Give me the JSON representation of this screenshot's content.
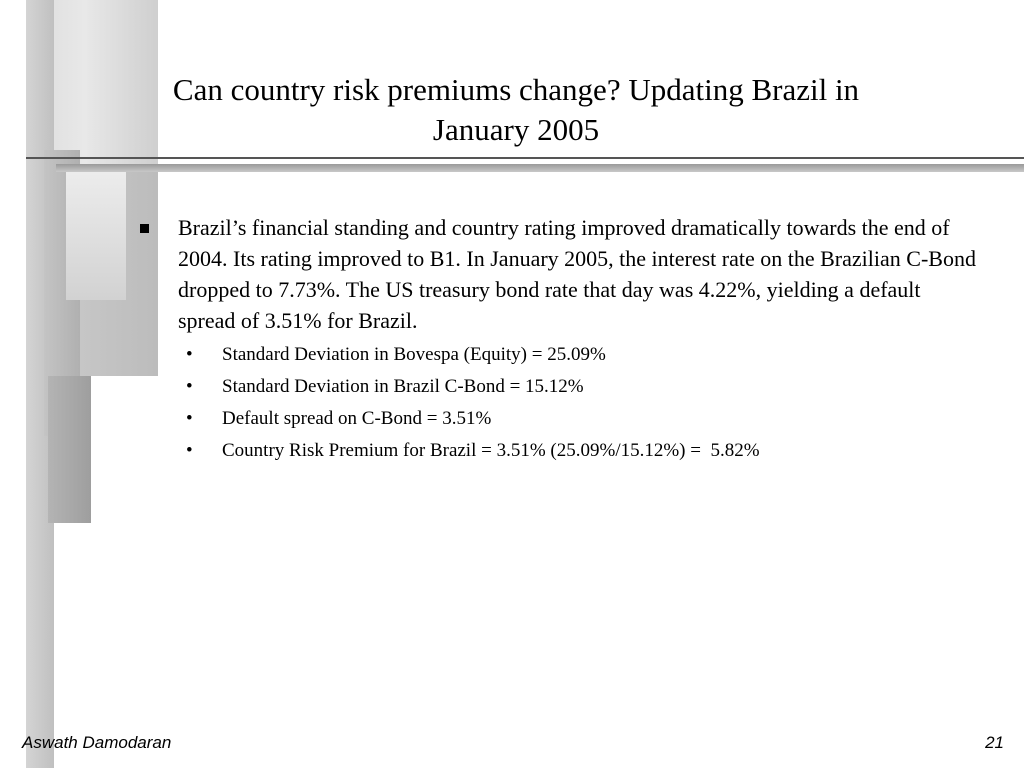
{
  "slide": {
    "title_line1": "Can country risk premiums change? Updating Brazil in",
    "title_line2": "January 2005",
    "main_bullet": "Brazil’s financial standing and country rating improved dramatically towards the end of 2004. Its rating improved to B1. In January 2005, the interest rate on the Brazilian C-Bond dropped to 7.73%. The US treasury bond rate that day was 4.22%, yielding a default spread of 3.51% for Brazil.",
    "sub_bullets": [
      "Standard Deviation in Bovespa (Equity) = 25.09%",
      "Standard Deviation in Brazil C-Bond = 15.12%",
      "Default spread on C-Bond = 3.51%",
      "Country Risk Premium for Brazil = 3.51% (25.09%/15.12%) =  5.82%"
    ],
    "sub_bullet_glyph": "•"
  },
  "footer": {
    "author": "Aswath Damodaran",
    "page_number": "21"
  }
}
